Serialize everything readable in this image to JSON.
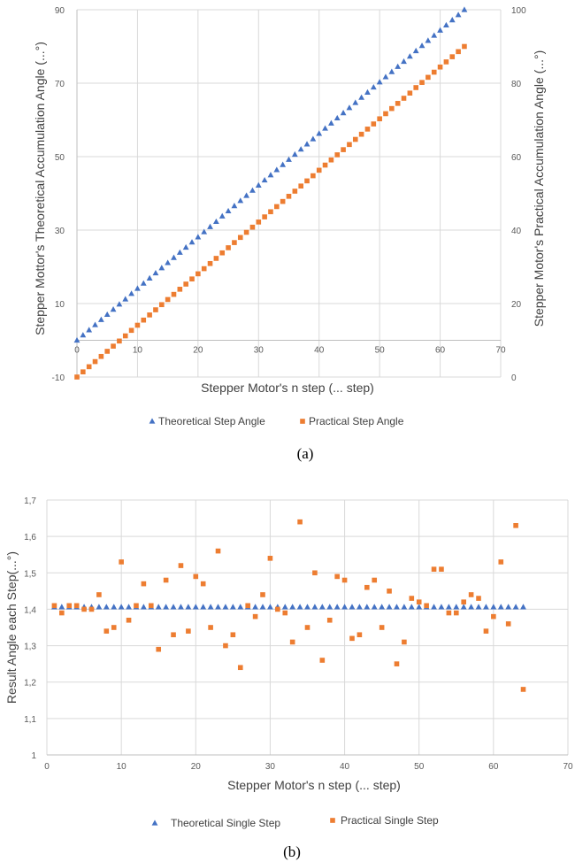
{
  "colors": {
    "theoretical": "#4472C4",
    "practical": "#ED7D31",
    "grid": "#d9d9d9",
    "axis": "#bfbfbf"
  },
  "chart_data": [
    {
      "type": "scatter",
      "caption": "(a)",
      "xlabel": "Stepper Motor's n step (... step)",
      "ylabel": "Stepper Mottor's Theoretical Accumulation Angle (...°)",
      "y2label": "Stepper Motor's Practical Accumulation Angle (...°)",
      "xlim": [
        0,
        70
      ],
      "ylim": [
        -10,
        90
      ],
      "y2lim": [
        0,
        100
      ],
      "xticks": [
        0,
        10,
        20,
        30,
        40,
        50,
        60,
        70
      ],
      "yticks": [
        -10,
        10,
        30,
        50,
        70,
        90
      ],
      "y2ticks": [
        0,
        20,
        40,
        60,
        80,
        100
      ],
      "legend": "bottom",
      "grid": true,
      "series": [
        {
          "name": "Theoretical Step Angle",
          "marker": "triangle",
          "axis": "left",
          "x_start": 0,
          "x_end": 64,
          "y_values": [
            0,
            1.4,
            2.8,
            4.2,
            5.6,
            7.0,
            8.4,
            9.8,
            11.2,
            12.7,
            14.1,
            15.5,
            16.9,
            18.3,
            19.7,
            21.1,
            22.5,
            23.9,
            25.3,
            26.7,
            28.1,
            29.5,
            30.9,
            32.3,
            33.8,
            35.2,
            36.6,
            38.0,
            39.4,
            40.8,
            42.2,
            43.6,
            45.0,
            46.4,
            47.8,
            49.2,
            50.6,
            52.0,
            53.4,
            54.8,
            56.3,
            57.7,
            59.1,
            60.5,
            61.9,
            63.3,
            64.7,
            66.1,
            67.5,
            68.9,
            70.3,
            71.7,
            73.1,
            74.5,
            75.9,
            77.3,
            78.8,
            80.2,
            81.6,
            83.0,
            84.4,
            85.8,
            87.2,
            88.6,
            90.0
          ]
        },
        {
          "name": "Practical Step Angle",
          "marker": "square",
          "axis": "right",
          "x_start": 0,
          "x_end": 64,
          "y_values": [
            0,
            1.4,
            2.8,
            4.2,
            5.6,
            7.0,
            8.4,
            9.8,
            11.2,
            12.7,
            14.1,
            15.5,
            16.9,
            18.3,
            19.7,
            21.1,
            22.5,
            23.9,
            25.3,
            26.7,
            28.1,
            29.5,
            30.9,
            32.3,
            33.8,
            35.2,
            36.6,
            38.0,
            39.4,
            40.8,
            42.2,
            43.6,
            45.0,
            46.4,
            47.8,
            49.2,
            50.6,
            52.0,
            53.4,
            54.8,
            56.3,
            57.7,
            59.1,
            60.5,
            61.9,
            63.3,
            64.7,
            66.1,
            67.5,
            68.9,
            70.3,
            71.7,
            73.1,
            74.5,
            75.9,
            77.3,
            78.8,
            80.2,
            81.6,
            83.0,
            84.4,
            85.8,
            87.2,
            88.6,
            90.0
          ]
        }
      ]
    },
    {
      "type": "scatter",
      "caption": "(b)",
      "xlabel": "Stepper Motor's n step (... step)",
      "ylabel": "Result Angle each Step(...°)",
      "xlim": [
        0,
        70
      ],
      "ylim": [
        1,
        1.7
      ],
      "xticks": [
        0,
        10,
        20,
        30,
        40,
        50,
        60,
        70
      ],
      "yticks": [
        "1",
        "1,1",
        "1,2",
        "1,3",
        "1,4",
        "1,5",
        "1,6",
        "1,7"
      ],
      "legend": "bottom",
      "grid": true,
      "series": [
        {
          "name": "Theoretical Single Step",
          "marker": "triangle",
          "x_start": 1,
          "x_end": 64,
          "constant_y": 1.40625
        },
        {
          "name": "Practical Single Step",
          "marker": "square",
          "x": [
            1,
            2,
            3,
            4,
            5,
            6,
            7,
            8,
            9,
            10,
            11,
            12,
            13,
            14,
            15,
            16,
            17,
            18,
            19,
            20,
            21,
            22,
            23,
            24,
            25,
            26,
            27,
            28,
            29,
            30,
            31,
            32,
            33,
            34,
            35,
            36,
            37,
            38,
            39,
            40,
            41,
            42,
            43,
            44,
            45,
            46,
            47,
            48,
            49,
            50,
            51,
            52,
            53,
            54,
            55,
            56,
            57,
            58,
            59,
            60,
            61,
            62,
            63,
            64
          ],
          "y": [
            1.41,
            1.39,
            1.41,
            1.41,
            1.4,
            1.4,
            1.44,
            1.34,
            1.35,
            1.53,
            1.37,
            1.41,
            1.47,
            1.41,
            1.29,
            1.48,
            1.33,
            1.52,
            1.34,
            1.49,
            1.47,
            1.35,
            1.56,
            1.3,
            1.33,
            1.24,
            1.41,
            1.38,
            1.44,
            1.54,
            1.4,
            1.39,
            1.31,
            1.64,
            1.35,
            1.5,
            1.26,
            1.37,
            1.49,
            1.48,
            1.32,
            1.33,
            1.46,
            1.48,
            1.35,
            1.45,
            1.25,
            1.31,
            1.43,
            1.42,
            1.41,
            1.51,
            1.51,
            1.39,
            1.39,
            1.42,
            1.44,
            1.43,
            1.34,
            1.38,
            1.53,
            1.36,
            1.63,
            1.18
          ]
        }
      ]
    }
  ]
}
